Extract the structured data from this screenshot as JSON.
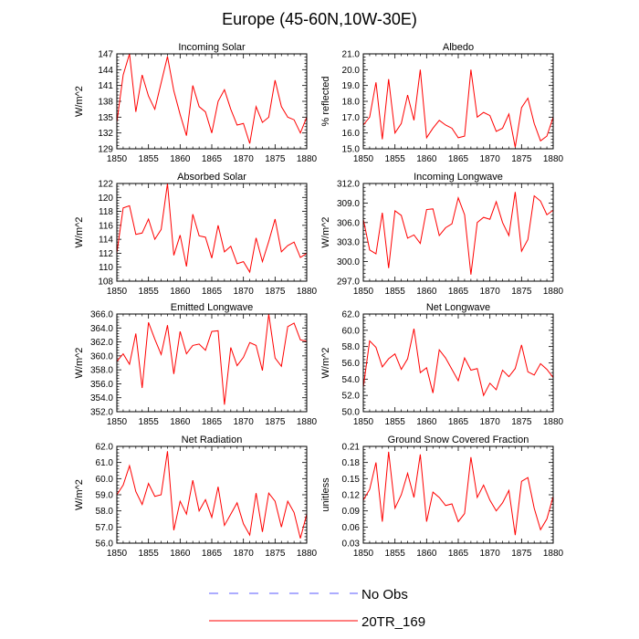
{
  "figure": {
    "title": "Europe (45-60N,10W-30E)",
    "legend": [
      {
        "label": "No Obs",
        "color": "#5a5aff",
        "style": "dashed"
      },
      {
        "label": "20TR_169",
        "color": "#ff0000",
        "style": "solid"
      }
    ]
  },
  "chart_data": [
    {
      "type": "line",
      "title": "Incoming Solar",
      "xlabel": "",
      "ylabel": "W/m^2",
      "xlim": [
        1850,
        1880
      ],
      "xticks": [
        1850,
        1855,
        1860,
        1865,
        1870,
        1875,
        1880
      ],
      "ylim": [
        129,
        147
      ],
      "yticks": [
        129,
        132,
        135,
        138,
        141,
        144,
        147
      ],
      "ydecimals": 0,
      "x_start": 1850,
      "x_step": 1,
      "series": [
        {
          "name": "20TR_169",
          "color": "#ff0000",
          "values": [
            134.0,
            143.0,
            147.0,
            136.0,
            143.0,
            139.0,
            136.5,
            141.5,
            146.5,
            140.0,
            135.5,
            131.5,
            141.0,
            137.0,
            136.0,
            132.0,
            138.0,
            140.2,
            136.5,
            133.5,
            133.8,
            130.0,
            137.0,
            134.0,
            135.0,
            142.0,
            137.0,
            135.0,
            134.5,
            132.0,
            135.0
          ]
        }
      ]
    },
    {
      "type": "line",
      "title": "Albedo",
      "xlabel": "",
      "ylabel": "% reflected",
      "xlim": [
        1850,
        1880
      ],
      "xticks": [
        1850,
        1855,
        1860,
        1865,
        1870,
        1875,
        1880
      ],
      "ylim": [
        15.0,
        21.0
      ],
      "yticks": [
        15.0,
        16.0,
        17.0,
        18.0,
        19.0,
        20.0,
        21.0
      ],
      "ydecimals": 1,
      "x_start": 1850,
      "x_step": 1,
      "series": [
        {
          "name": "20TR_169",
          "color": "#ff0000",
          "values": [
            16.5,
            17.0,
            19.2,
            15.6,
            19.4,
            16.0,
            16.6,
            18.4,
            16.8,
            20.0,
            15.7,
            16.3,
            16.8,
            16.5,
            16.3,
            15.7,
            15.8,
            20.0,
            17.0,
            17.3,
            17.1,
            16.1,
            16.3,
            17.2,
            15.1,
            17.6,
            18.2,
            16.6,
            15.5,
            15.8,
            17.0
          ]
        }
      ]
    },
    {
      "type": "line",
      "title": "Absorbed Solar",
      "xlabel": "",
      "ylabel": "W/m^2",
      "xlim": [
        1850,
        1880
      ],
      "xticks": [
        1850,
        1855,
        1860,
        1865,
        1870,
        1875,
        1880
      ],
      "ylim": [
        108,
        122
      ],
      "yticks": [
        108,
        110,
        112,
        114,
        116,
        118,
        120,
        122
      ],
      "ydecimals": 0,
      "x_start": 1850,
      "x_step": 1,
      "series": [
        {
          "name": "20TR_169",
          "color": "#ff0000",
          "values": [
            112.0,
            118.5,
            118.8,
            114.7,
            114.9,
            116.9,
            114.0,
            115.4,
            122.0,
            111.7,
            114.6,
            110.1,
            117.6,
            114.5,
            114.3,
            111.3,
            116.0,
            112.2,
            113.0,
            110.5,
            110.8,
            109.3,
            114.2,
            110.8,
            113.7,
            116.9,
            112.2,
            113.1,
            113.6,
            111.4,
            112.0
          ]
        }
      ]
    },
    {
      "type": "line",
      "title": "Incoming Longwave",
      "xlabel": "",
      "ylabel": "W/m^2",
      "xlim": [
        1850,
        1880
      ],
      "xticks": [
        1850,
        1855,
        1860,
        1865,
        1870,
        1875,
        1880
      ],
      "ylim": [
        297.0,
        312.0
      ],
      "yticks": [
        297.0,
        300.0,
        303.0,
        306.0,
        309.0,
        312.0
      ],
      "ydecimals": 1,
      "x_start": 1850,
      "x_step": 1,
      "series": [
        {
          "name": "20TR_169",
          "color": "#ff0000",
          "values": [
            306.5,
            301.8,
            301.2,
            307.5,
            299.0,
            307.8,
            307.1,
            303.6,
            304.1,
            302.8,
            308.0,
            308.1,
            304.0,
            305.2,
            305.8,
            309.8,
            307.2,
            298.0,
            306.0,
            306.8,
            306.5,
            309.2,
            306.0,
            304.0,
            310.7,
            301.6,
            303.4,
            310.1,
            309.3,
            307.2,
            307.9
          ]
        }
      ]
    },
    {
      "type": "line",
      "title": "Emitted Longwave",
      "xlabel": "",
      "ylabel": "W/m^2",
      "xlim": [
        1850,
        1880
      ],
      "xticks": [
        1850,
        1855,
        1860,
        1865,
        1870,
        1875,
        1880
      ],
      "ylim": [
        352.0,
        366.0
      ],
      "yticks": [
        352.0,
        354.0,
        356.0,
        358.0,
        360.0,
        362.0,
        364.0,
        366.0
      ],
      "ydecimals": 1,
      "x_start": 1850,
      "x_step": 1,
      "series": [
        {
          "name": "20TR_169",
          "color": "#ff0000",
          "values": [
            359.2,
            360.3,
            358.8,
            363.2,
            355.4,
            364.8,
            362.4,
            360.2,
            364.4,
            357.4,
            363.5,
            360.3,
            361.5,
            361.7,
            360.8,
            363.5,
            363.6,
            353.0,
            361.2,
            358.6,
            359.8,
            361.9,
            361.5,
            357.9,
            366.0,
            359.7,
            358.5,
            364.2,
            364.7,
            362.3,
            362.1
          ]
        }
      ]
    },
    {
      "type": "line",
      "title": "Net Longwave",
      "xlabel": "",
      "ylabel": "W/m^2",
      "xlim": [
        1850,
        1880
      ],
      "xticks": [
        1850,
        1855,
        1860,
        1865,
        1870,
        1875,
        1880
      ],
      "ylim": [
        50.0,
        62.0
      ],
      "yticks": [
        50.0,
        52.0,
        54.0,
        56.0,
        58.0,
        60.0,
        62.0
      ],
      "ydecimals": 1,
      "x_start": 1850,
      "x_step": 1,
      "series": [
        {
          "name": "20TR_169",
          "color": "#ff0000",
          "values": [
            53.0,
            58.7,
            57.9,
            55.5,
            56.5,
            57.1,
            55.2,
            56.5,
            60.2,
            54.8,
            55.4,
            52.3,
            57.6,
            56.6,
            55.2,
            53.8,
            56.6,
            55.1,
            55.3,
            52.0,
            53.5,
            52.7,
            55.1,
            54.3,
            55.3,
            58.2,
            54.9,
            54.5,
            55.9,
            55.2,
            54.2
          ]
        }
      ]
    },
    {
      "type": "line",
      "title": "Net Radiation",
      "xlabel": "",
      "ylabel": "W/m^2",
      "xlim": [
        1850,
        1880
      ],
      "xticks": [
        1850,
        1855,
        1860,
        1865,
        1870,
        1875,
        1880
      ],
      "ylim": [
        56.0,
        62.0
      ],
      "yticks": [
        56.0,
        57.0,
        58.0,
        59.0,
        60.0,
        61.0,
        62.0
      ],
      "ydecimals": 1,
      "x_start": 1850,
      "x_step": 1,
      "series": [
        {
          "name": "20TR_169",
          "color": "#ff0000",
          "values": [
            59.0,
            59.6,
            60.8,
            59.2,
            58.4,
            59.7,
            58.9,
            59.0,
            61.7,
            56.8,
            58.6,
            57.8,
            59.9,
            58.0,
            58.7,
            57.6,
            59.5,
            57.1,
            57.8,
            58.5,
            57.2,
            56.5,
            59.1,
            56.7,
            59.1,
            58.6,
            57.0,
            58.6,
            57.9,
            56.3,
            57.8
          ]
        }
      ]
    },
    {
      "type": "line",
      "title": "Ground Snow Covered Fraction",
      "xlabel": "",
      "ylabel": "unitless",
      "xlim": [
        1850,
        1880
      ],
      "xticks": [
        1850,
        1855,
        1860,
        1865,
        1870,
        1875,
        1880
      ],
      "ylim": [
        0.03,
        0.21
      ],
      "yticks": [
        0.03,
        0.06,
        0.09,
        0.12,
        0.15,
        0.18,
        0.21
      ],
      "ydecimals": 2,
      "x_start": 1850,
      "x_step": 1,
      "series": [
        {
          "name": "20TR_169",
          "color": "#ff0000",
          "values": [
            0.11,
            0.13,
            0.18,
            0.07,
            0.2,
            0.095,
            0.12,
            0.16,
            0.115,
            0.195,
            0.07,
            0.125,
            0.115,
            0.1,
            0.103,
            0.07,
            0.085,
            0.19,
            0.115,
            0.138,
            0.11,
            0.09,
            0.105,
            0.128,
            0.045,
            0.145,
            0.152,
            0.095,
            0.055,
            0.075,
            0.117
          ]
        }
      ]
    }
  ]
}
